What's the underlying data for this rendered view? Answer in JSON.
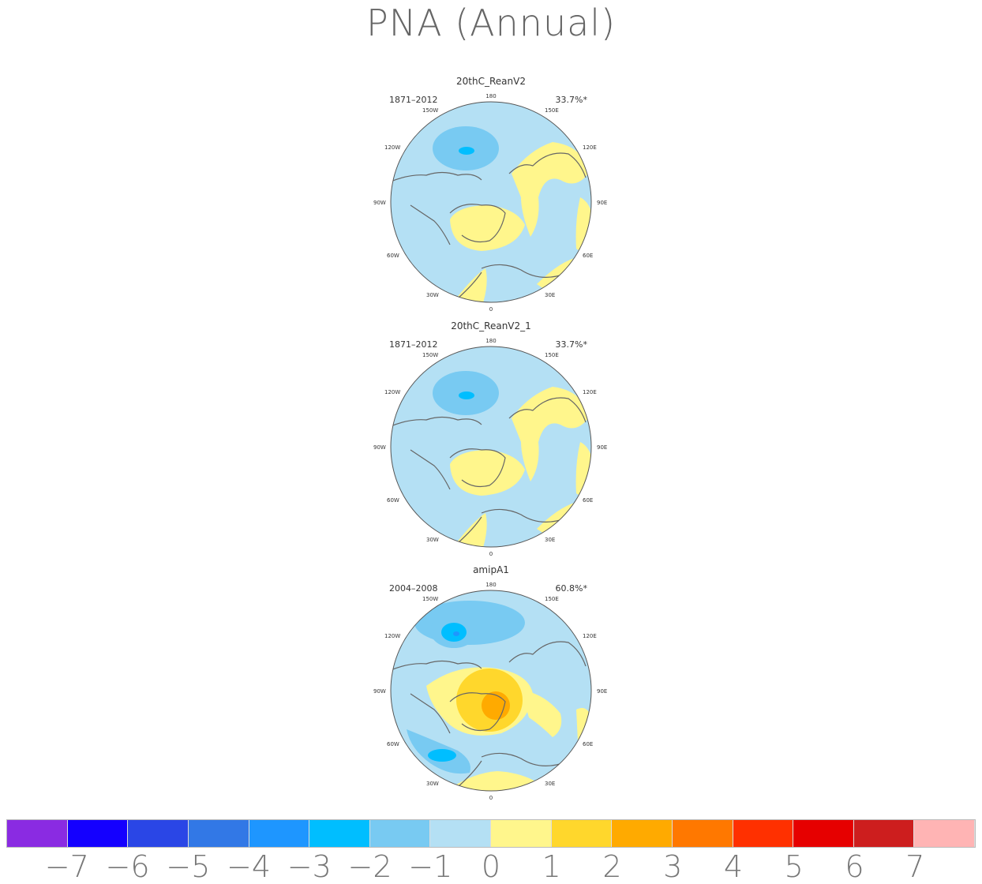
{
  "title": "PNA (Annual)",
  "panels": [
    {
      "name": "20thC_ReanV2",
      "period": "1871–2012",
      "pct": "33.7%*"
    },
    {
      "name": "20thC_ReanV2_1",
      "period": "1871–2012",
      "pct": "33.7%*"
    },
    {
      "name": "amipA1",
      "period": "2004–2008",
      "pct": "60.8%*"
    }
  ],
  "lon_labels": {
    "l180": "180",
    "l150e": "150E",
    "l120e": "120E",
    "l90e": "90E",
    "l60e": "60E",
    "l30e": "30E",
    "l0": "0",
    "l30w": "30W",
    "l60w": "60W",
    "l90w": "90W",
    "l120w": "120W",
    "l150w": "150W"
  },
  "colorbar": {
    "colors": [
      "#8A2BE2",
      "#1400FF",
      "#2A46E6",
      "#3278E6",
      "#1E96FF",
      "#00BEFF",
      "#78CAF2",
      "#B4E0F4",
      "#FFF68C",
      "#FFD72C",
      "#FFAA00",
      "#FF7800",
      "#FF3000",
      "#E60000",
      "#CD1E1E",
      "#FFB4B4"
    ],
    "labels": [
      "−7",
      "−6",
      "−5",
      "−4",
      "−3",
      "−2",
      "−1",
      "0",
      "1",
      "2",
      "3",
      "4",
      "5",
      "6",
      "7"
    ]
  }
}
